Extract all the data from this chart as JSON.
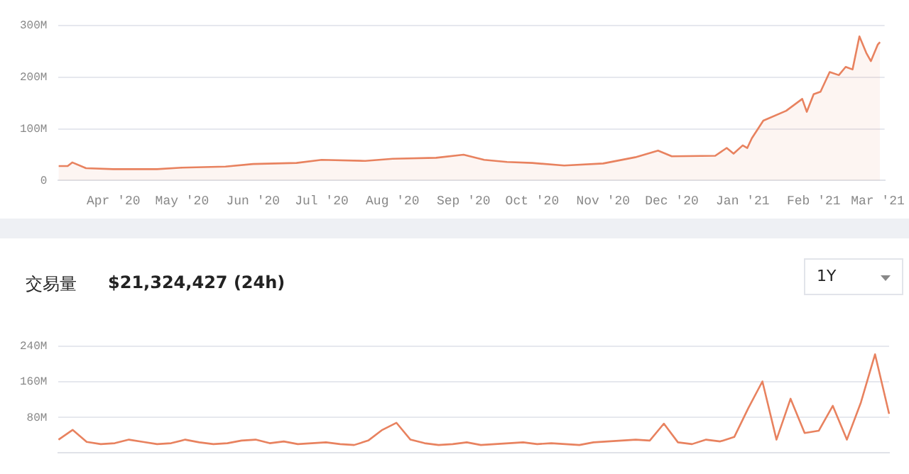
{
  "chart_data": [
    {
      "type": "area",
      "color": "#e8825f",
      "x": [
        "2020-03-08",
        "2020-03-12",
        "2020-03-14",
        "2020-03-20",
        "2020-04-01",
        "2020-04-20",
        "2020-05-01",
        "2020-05-20",
        "2020-06-01",
        "2020-06-20",
        "2020-07-01",
        "2020-07-20",
        "2020-08-01",
        "2020-08-20",
        "2020-09-01",
        "2020-09-10",
        "2020-09-20",
        "2020-10-01",
        "2020-10-15",
        "2020-11-01",
        "2020-11-15",
        "2020-11-25",
        "2020-12-01",
        "2020-12-20",
        "2020-12-25",
        "2020-12-28",
        "2021-01-01",
        "2021-01-03",
        "2021-01-05",
        "2021-01-10",
        "2021-01-20",
        "2021-01-27",
        "2021-01-29",
        "2021-02-01",
        "2021-02-04",
        "2021-02-08",
        "2021-02-12",
        "2021-02-15",
        "2021-02-18",
        "2021-02-21",
        "2021-02-24",
        "2021-02-26",
        "2021-03-01",
        "2021-03-02"
      ],
      "values": [
        28,
        28,
        35,
        24,
        22,
        22,
        25,
        27,
        32,
        34,
        40,
        38,
        42,
        44,
        50,
        40,
        36,
        34,
        29,
        33,
        45,
        58,
        47,
        48,
        63,
        52,
        68,
        63,
        82,
        116,
        135,
        158,
        133,
        167,
        172,
        210,
        204,
        220,
        215,
        279,
        247,
        231,
        263,
        268
      ],
      "xlim": [
        "2020-03-08",
        "2021-03-04"
      ],
      "xticks": [
        {
          "value": "2020-04-01",
          "label": "Apr '20"
        },
        {
          "value": "2020-05-01",
          "label": "May '20"
        },
        {
          "value": "2020-06-01",
          "label": "Jun '20"
        },
        {
          "value": "2020-07-01",
          "label": "Jul '20"
        },
        {
          "value": "2020-08-01",
          "label": "Aug '20"
        },
        {
          "value": "2020-09-01",
          "label": "Sep '20"
        },
        {
          "value": "2020-10-01",
          "label": "Oct '20"
        },
        {
          "value": "2020-11-01",
          "label": "Nov '20"
        },
        {
          "value": "2020-12-01",
          "label": "Dec '20"
        },
        {
          "value": "2021-01-01",
          "label": "Jan '21"
        },
        {
          "value": "2021-02-01",
          "label": "Feb '21"
        },
        {
          "value": "2021-03-01",
          "label": "Mar '21"
        }
      ],
      "ylim": [
        0,
        300
      ],
      "yticks": [
        0,
        {
          "value": 100,
          "label": "100M"
        },
        {
          "value": 200,
          "label": "200M"
        },
        {
          "value": 300,
          "label": "300M"
        }
      ],
      "grid": "y",
      "legend": false
    },
    {
      "type": "line",
      "title": "交易量",
      "subtitle": "$21,324,427 (24h)",
      "annotations": [
        "1Y"
      ],
      "color": "#e8825f",
      "categories": [
        null,
        null,
        null,
        null,
        null,
        null,
        null,
        null,
        null,
        null,
        null,
        null,
        null,
        null,
        null,
        null,
        null,
        null,
        null,
        null,
        null,
        null,
        null,
        null,
        null,
        null,
        null,
        null,
        null,
        null,
        null,
        null,
        null,
        null,
        null,
        null,
        null,
        null,
        null,
        null,
        null,
        null,
        null,
        null,
        null,
        null,
        null,
        null,
        null,
        null,
        null,
        null,
        null,
        null,
        null,
        null,
        null,
        null,
        null,
        null
      ],
      "values": [
        30,
        52,
        25,
        20,
        22,
        30,
        25,
        20,
        22,
        30,
        24,
        20,
        22,
        28,
        30,
        22,
        26,
        20,
        22,
        24,
        20,
        18,
        28,
        52,
        68,
        30,
        22,
        18,
        20,
        24,
        18,
        20,
        22,
        24,
        20,
        22,
        20,
        18,
        24,
        26,
        28,
        30,
        28,
        66,
        24,
        20,
        30,
        26,
        36,
        101,
        161,
        30,
        122,
        45,
        50,
        106,
        30,
        114,
        222,
        88
      ],
      "ylim": [
        0,
        240
      ],
      "yticks": [
        {
          "value": 80,
          "label": "80M"
        },
        {
          "value": 160,
          "label": "160M"
        },
        {
          "value": 240,
          "label": "240M"
        }
      ],
      "grid": "y",
      "legend": false,
      "tick_labels": "y"
    }
  ]
}
